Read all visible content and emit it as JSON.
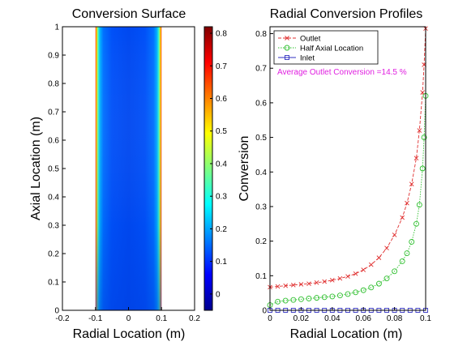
{
  "chart_data": [
    {
      "type": "heatmap",
      "title": "Conversion Surface",
      "xlabel": "Radial Location (m)",
      "ylabel": "Axial Location (m)",
      "xlim": [
        -0.2,
        0.2
      ],
      "ylim": [
        0,
        1
      ],
      "xticks": [
        "-0.2",
        "-0.1",
        "0",
        "0.1",
        "0.2"
      ],
      "yticks": [
        "0",
        "0.1",
        "0.2",
        "0.3",
        "0.4",
        "0.5",
        "0.6",
        "0.7",
        "0.8",
        "0.9",
        "1"
      ],
      "surface_extent_x": [
        -0.1,
        0.1
      ],
      "colorbar": {
        "range": [
          -0.05,
          0.82
        ],
        "ticks": [
          "0",
          "0.1",
          "0.2",
          "0.3",
          "0.4",
          "0.5",
          "0.6",
          "0.7",
          "0.8"
        ],
        "tick_values": [
          0,
          0.1,
          0.2,
          0.3,
          0.4,
          0.5,
          0.6,
          0.7,
          0.8
        ],
        "colormap": "jet"
      }
    },
    {
      "type": "line",
      "title": "Radial Conversion Profiles",
      "xlabel": "Radial Location (m)",
      "ylabel": "Conversion",
      "xlim": [
        0,
        0.1
      ],
      "ylim": [
        0,
        0.82
      ],
      "xticks": [
        "0",
        "0.02",
        "0.04",
        "0.06",
        "0.08",
        "0.1"
      ],
      "yticks": [
        "0",
        "0.1",
        "0.2",
        "0.3",
        "0.4",
        "0.5",
        "0.6",
        "0.7",
        "0.8"
      ],
      "legend": {
        "placement": "top-left",
        "entries": [
          "Outlet",
          "Half Axial Location",
          "Inlet"
        ]
      },
      "annotation": "Average Outlet Conversion =14.5 %",
      "annotation_color": "#e020e0",
      "series": [
        {
          "name": "Outlet",
          "color": "#e03030",
          "marker": "x",
          "linestyle": "dashed",
          "x": [
            0,
            0.005,
            0.01,
            0.015,
            0.02,
            0.025,
            0.03,
            0.035,
            0.04,
            0.045,
            0.05,
            0.055,
            0.06,
            0.065,
            0.07,
            0.075,
            0.08,
            0.085,
            0.088,
            0.091,
            0.094,
            0.096,
            0.098,
            0.099,
            0.1
          ],
          "y": [
            0.067,
            0.069,
            0.071,
            0.073,
            0.075,
            0.077,
            0.08,
            0.083,
            0.087,
            0.092,
            0.098,
            0.106,
            0.117,
            0.132,
            0.152,
            0.18,
            0.218,
            0.268,
            0.31,
            0.365,
            0.44,
            0.52,
            0.63,
            0.71,
            0.815
          ]
        },
        {
          "name": "Half Axial Location",
          "color": "#30c030",
          "marker": "o",
          "linestyle": "dotted",
          "x": [
            0,
            0.005,
            0.01,
            0.015,
            0.02,
            0.025,
            0.03,
            0.035,
            0.04,
            0.045,
            0.05,
            0.055,
            0.06,
            0.065,
            0.07,
            0.075,
            0.08,
            0.085,
            0.088,
            0.091,
            0.094,
            0.096,
            0.098,
            0.099,
            0.1
          ],
          "y": [
            0.015,
            0.025,
            0.028,
            0.03,
            0.032,
            0.034,
            0.036,
            0.038,
            0.04,
            0.043,
            0.047,
            0.052,
            0.058,
            0.066,
            0.077,
            0.092,
            0.113,
            0.142,
            0.165,
            0.198,
            0.25,
            0.305,
            0.41,
            0.5,
            0.62
          ]
        },
        {
          "name": "Inlet",
          "color": "#3030c0",
          "marker": "square",
          "linestyle": "solid",
          "x": [
            0,
            0.005,
            0.01,
            0.015,
            0.02,
            0.025,
            0.03,
            0.035,
            0.04,
            0.045,
            0.05,
            0.055,
            0.06,
            0.065,
            0.07,
            0.075,
            0.08,
            0.085,
            0.09,
            0.095,
            0.1
          ],
          "y": [
            0,
            0,
            0,
            0,
            0,
            0,
            0,
            0,
            0,
            0,
            0,
            0,
            0,
            0,
            0,
            0,
            0,
            0,
            0,
            0,
            0
          ]
        }
      ]
    }
  ]
}
